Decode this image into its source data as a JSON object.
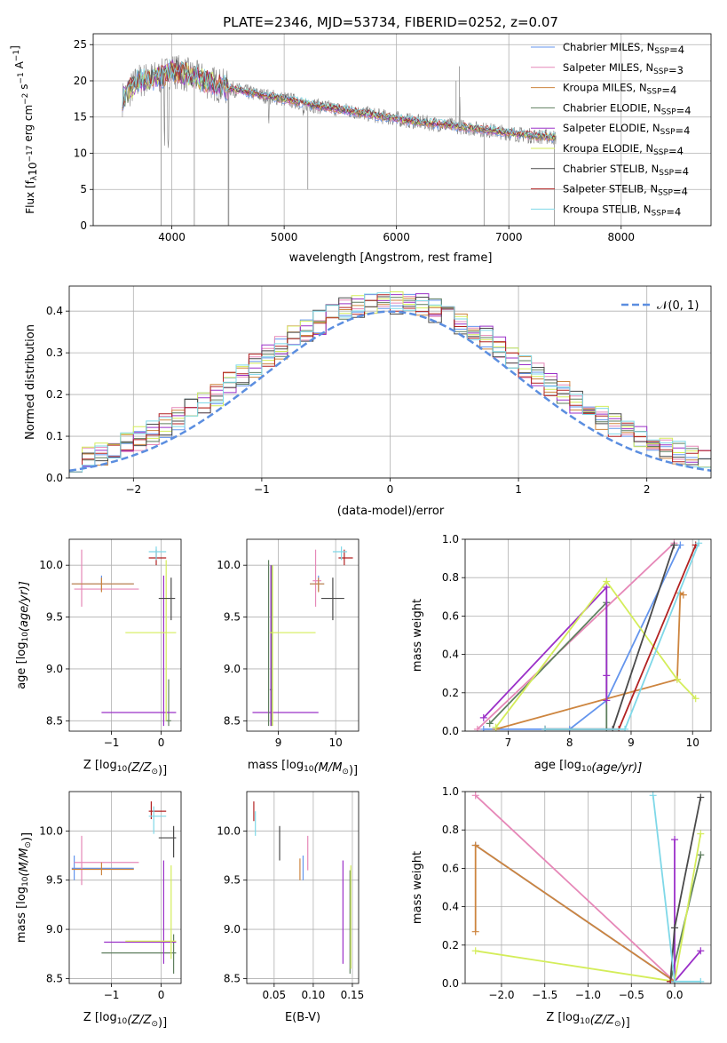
{
  "title": "PLATE=2346, MJD=53734, FIBERID=0252, z=0.07",
  "colors": [
    "#5b7ee0",
    "#e07fb0",
    "#b8860b",
    "#555555",
    "#8a2be2",
    "#d4ed5a",
    "#333333",
    "#b22222",
    "#7fd8e8"
  ],
  "model_colors": {
    "chabrier_miles": "#6495ed",
    "salpeter_miles": "#e688b8",
    "kroupa_miles": "#cd853f",
    "chabrier_elodie": "#5f7f5f",
    "salpeter_elodie": "#9b30c8",
    "kroupa_elodie": "#d4ed5a",
    "chabrier_stelib": "#4a4a4a",
    "salpeter_stelib": "#b22222",
    "kroupa_stelib": "#7fd8e8"
  },
  "chart_data": [
    {
      "id": "spectrum",
      "type": "line",
      "title": "PLATE=2346, MJD=53734, FIBERID=0252, z=0.07",
      "xlabel": "wavelength [Angstrom, rest frame]",
      "ylabel_main": "Flux [f",
      "ylabel_sub": "λ",
      "ylabel_rest": "10",
      "ylabel_exp": "−17",
      "ylabel_tail": " erg cm",
      "ylabel_exp2": "−2",
      "ylabel_tail2": " s",
      "ylabel_exp3": "−1",
      "ylabel_tail3": " A",
      "ylabel_exp4": "−1",
      "ylabel_end": "]",
      "xlim": [
        3300,
        8800
      ],
      "ylim": [
        0,
        26.5
      ],
      "xticks": [
        "4000",
        "5000",
        "6000",
        "7000",
        "8000"
      ],
      "xtick_values": [
        4000,
        5000,
        6000,
        7000,
        8000
      ],
      "yticks": [
        "0",
        "5",
        "10",
        "15",
        "20",
        "25"
      ],
      "ytick_values": [
        0,
        5,
        10,
        15,
        20,
        25
      ],
      "continuum": {
        "x": [
          3560,
          3700,
          3900,
          4000,
          4200,
          4500,
          4800,
          5000,
          5300,
          5600,
          5900,
          6200,
          6500,
          6800,
          7000,
          7200,
          7400
        ],
        "y": [
          17.5,
          20.0,
          20.5,
          21.5,
          20.5,
          19.0,
          18.0,
          17.5,
          16.5,
          15.8,
          15.0,
          14.3,
          13.8,
          13.2,
          12.8,
          12.4,
          12.2
        ]
      },
      "legend": [
        {
          "name": "Chabrier MILES, N",
          "sub": "SSP",
          "tail": "=4"
        },
        {
          "name": "Salpeter MILES, N",
          "sub": "SSP",
          "tail": "=3"
        },
        {
          "name": "Kroupa MILES, N",
          "sub": "SSP",
          "tail": "=4"
        },
        {
          "name": "Chabrier ELODIE, N",
          "sub": "SSP",
          "tail": "=4"
        },
        {
          "name": "Salpeter ELODIE, N",
          "sub": "SSP",
          "tail": "=4"
        },
        {
          "name": "Kroupa ELODIE, N",
          "sub": "SSP",
          "tail": "=4"
        },
        {
          "name": "Chabrier STELIB, N",
          "sub": "SSP",
          "tail": "=4"
        },
        {
          "name": "Salpeter STELIB, N",
          "sub": "SSP",
          "tail": "=4"
        },
        {
          "name": "Kroupa STELIB, N",
          "sub": "SSP",
          "tail": "=4"
        }
      ]
    },
    {
      "id": "residuals",
      "type": "bar",
      "xlabel": "(data-model)/error",
      "ylabel": "Normed distribution",
      "xlim": [
        -2.5,
        2.5
      ],
      "ylim": [
        0,
        0.46
      ],
      "xticks": [
        "−2",
        "−1",
        "0",
        "1",
        "2"
      ],
      "xtick_values": [
        -2,
        -1,
        0,
        1,
        2
      ],
      "yticks": [
        "0.0",
        "0.1",
        "0.2",
        "0.3",
        "0.4"
      ],
      "ytick_values": [
        0,
        0.1,
        0.2,
        0.3,
        0.4
      ],
      "bin_width": 0.1,
      "legend_label": "𝒩(0, 1)",
      "gaussian": {
        "mu": 0,
        "sigma": 1
      }
    },
    {
      "id": "age_vs_Z",
      "type": "scatter",
      "xlabel": "Z [log",
      "xlabel_sub": "10",
      "xlabel_rest": "(Z/Z",
      "xlabel_sun": "⊙",
      "xlabel_end": ")]",
      "ylabel": "age  [log",
      "ylabel_sub": "10",
      "ylabel_rest": "(age/yr)]",
      "xlim": [
        -1.85,
        0.4
      ],
      "ylim": [
        8.4,
        10.25
      ],
      "xticks": [
        "−1",
        "0"
      ],
      "xtick_values": [
        -1,
        0
      ],
      "yticks": [
        "8.5",
        "9.0",
        "9.5",
        "10.0"
      ],
      "ytick_values": [
        8.5,
        9.0,
        9.5,
        10.0
      ],
      "errorbars": [
        {
          "c": "chabrier_miles",
          "x": -1.2,
          "xl": -1.8,
          "xh": -0.55,
          "y": 9.82,
          "yl": 9.75,
          "yh": 9.9
        },
        {
          "c": "salpeter_miles",
          "x": -1.6,
          "xl": -1.75,
          "xh": -0.45,
          "y": 9.77,
          "yl": 9.6,
          "yh": 10.15
        },
        {
          "c": "kroupa_miles",
          "x": -1.2,
          "xl": -1.8,
          "xh": -0.55,
          "y": 9.82,
          "yl": 9.74,
          "yh": 9.88
        },
        {
          "c": "chabrier_elodie",
          "x": 0.15,
          "xl": 0.1,
          "xh": 0.2,
          "y": 8.5,
          "yl": 8.45,
          "yh": 8.9
        },
        {
          "c": "salpeter_elodie",
          "x": 0.05,
          "xl": -1.2,
          "xh": 0.3,
          "y": 8.58,
          "yl": 8.45,
          "yh": 9.9
        },
        {
          "c": "kroupa_elodie",
          "x": 0.1,
          "xl": -0.72,
          "xh": 0.3,
          "y": 9.35,
          "yl": 8.5,
          "yh": 10.05
        },
        {
          "c": "chabrier_stelib",
          "x": 0.2,
          "xl": -0.05,
          "xh": 0.28,
          "y": 9.68,
          "yl": 9.47,
          "yh": 9.88
        },
        {
          "c": "salpeter_stelib",
          "x": -0.1,
          "xl": -0.25,
          "xh": 0.1,
          "y": 10.07,
          "yl": 10.0,
          "yh": 10.15
        },
        {
          "c": "kroupa_stelib",
          "x": -0.1,
          "xl": -0.25,
          "xh": 0.1,
          "y": 10.13,
          "yl": 10.05,
          "yh": 10.18
        }
      ]
    },
    {
      "id": "age_vs_mass",
      "type": "scatter",
      "xlabel": "mass [log",
      "xlabel_sub": "10",
      "xlabel_rest": "(M/M",
      "xlabel_sun": "⊙",
      "xlabel_end": ")]",
      "xlim": [
        8.45,
        10.4
      ],
      "ylim": [
        8.4,
        10.25
      ],
      "xticks": [
        "9",
        "10"
      ],
      "xtick_values": [
        9,
        10
      ],
      "yticks": [
        "8.5",
        "9.0",
        "9.5",
        "10.0"
      ],
      "ytick_values": [
        8.5,
        9.0,
        9.5,
        10.0
      ],
      "errorbars": [
        {
          "c": "chabrier_miles",
          "x": 9.7,
          "xl": 9.55,
          "xh": 9.8,
          "y": 9.82,
          "yl": 9.75,
          "yh": 9.9
        },
        {
          "c": "salpeter_miles",
          "x": 9.65,
          "xl": 9.6,
          "xh": 9.75,
          "y": 9.85,
          "yl": 9.6,
          "yh": 10.15
        },
        {
          "c": "kroupa_miles",
          "x": 9.7,
          "xl": 9.55,
          "xh": 9.8,
          "y": 9.82,
          "yl": 9.74,
          "yh": 9.88
        },
        {
          "c": "chabrier_elodie",
          "x": 8.88,
          "xl": 8.85,
          "xh": 8.9,
          "y": 8.8,
          "yl": 8.45,
          "yh": 10.0
        },
        {
          "c": "salpeter_elodie",
          "x": 8.87,
          "xl": 8.55,
          "xh": 9.7,
          "y": 8.58,
          "yl": 8.45,
          "yh": 10.0
        },
        {
          "c": "kroupa_elodie",
          "x": 8.9,
          "xl": 8.85,
          "xh": 9.65,
          "y": 9.35,
          "yl": 8.45,
          "yh": 10.0
        },
        {
          "c": "chabrier_stelib",
          "x": 9.95,
          "xl": 9.75,
          "xh": 10.15,
          "y": 9.68,
          "yl": 9.47,
          "yh": 9.88
        },
        {
          "c": "salpeter_stelib",
          "x": 10.15,
          "xl": 10.05,
          "xh": 10.3,
          "y": 10.07,
          "yl": 10.0,
          "yh": 10.15
        },
        {
          "c": "kroupa_stelib",
          "x": 10.1,
          "xl": 9.95,
          "xh": 10.2,
          "y": 10.13,
          "yl": 10.05,
          "yh": 10.18
        },
        {
          "c": "chabrier_elodie",
          "x": 8.83,
          "xl": 8.83,
          "xh": 8.83,
          "y": 9.2,
          "yl": 8.45,
          "yh": 10.05
        }
      ]
    },
    {
      "id": "weight_vs_age",
      "type": "line",
      "xlabel": "age  [log",
      "xlabel_sub": "10",
      "xlabel_rest": "(age/yr)]",
      "ylabel": "mass weight",
      "xlim": [
        6.3,
        10.3
      ],
      "ylim": [
        0,
        1.0
      ],
      "xticks": [
        "7",
        "8",
        "9",
        "10"
      ],
      "xtick_values": [
        7,
        8,
        9,
        10
      ],
      "yticks": [
        "0.0",
        "0.2",
        "0.4",
        "0.6",
        "0.8",
        "1.0"
      ],
      "ytick_values": [
        0,
        0.2,
        0.4,
        0.6,
        0.8,
        1.0
      ],
      "series": [
        {
          "c": "chabrier_miles",
          "x": [
            6.6,
            8.0,
            8.6,
            9.8
          ],
          "y": [
            0.01,
            0.01,
            0.16,
            0.97
          ]
        },
        {
          "c": "salpeter_miles",
          "x": [
            6.5,
            9.7
          ],
          "y": [
            0.01,
            0.98
          ]
        },
        {
          "c": "kroupa_miles",
          "x": [
            6.8,
            9.75,
            9.8,
            9.85
          ],
          "y": [
            0.01,
            0.27,
            0.72,
            0.71
          ]
        },
        {
          "c": "chabrier_elodie",
          "x": [
            6.7,
            8.6,
            8.6
          ],
          "y": [
            0.04,
            0.67,
            0.01
          ]
        },
        {
          "c": "salpeter_elodie",
          "x": [
            6.6,
            8.6,
            8.6,
            8.6
          ],
          "y": [
            0.07,
            0.75,
            0.29,
            0.16
          ]
        },
        {
          "c": "kroupa_elodie",
          "x": [
            6.8,
            8.6,
            9.75,
            10.05
          ],
          "y": [
            0.02,
            0.78,
            0.27,
            0.17
          ]
        },
        {
          "c": "chabrier_stelib",
          "x": [
            7.6,
            8.7,
            9.7
          ],
          "y": [
            0.01,
            0.01,
            0.97
          ]
        },
        {
          "c": "salpeter_stelib",
          "x": [
            7.6,
            8.8,
            10.05
          ],
          "y": [
            0.01,
            0.01,
            0.97
          ]
        },
        {
          "c": "kroupa_stelib",
          "x": [
            7.6,
            8.9,
            10.1
          ],
          "y": [
            0.01,
            0.01,
            0.98
          ]
        }
      ]
    },
    {
      "id": "mass_vs_Z",
      "type": "scatter",
      "xlabel": "Z [log",
      "xlabel_sub": "10",
      "xlabel_rest": "(Z/Z",
      "xlabel_sun": "⊙",
      "xlabel_end": ")]",
      "ylabel": "mass [log",
      "ylabel_sub": "10",
      "ylabel_rest": "(M/M",
      "ylabel_sun": "⊙",
      "ylabel_end": ")]",
      "xlim": [
        -1.85,
        0.4
      ],
      "ylim": [
        8.45,
        10.4
      ],
      "xticks": [
        "−1",
        "0"
      ],
      "xtick_values": [
        -1,
        0
      ],
      "yticks": [
        "8.5",
        "9.0",
        "9.5",
        "10.0"
      ],
      "ytick_values": [
        8.5,
        9.0,
        9.5,
        10.0
      ],
      "errorbars": [
        {
          "c": "chabrier_miles",
          "x": -1.75,
          "xl": -1.8,
          "xh": -0.55,
          "y": 9.62,
          "yl": 9.5,
          "yh": 9.75
        },
        {
          "c": "salpeter_miles",
          "x": -1.6,
          "xl": -1.75,
          "xh": -0.45,
          "y": 9.68,
          "yl": 9.45,
          "yh": 9.95
        },
        {
          "c": "kroupa_miles",
          "x": -1.2,
          "xl": -1.8,
          "xh": -0.55,
          "y": 9.61,
          "yl": 9.55,
          "yh": 9.68
        },
        {
          "c": "chabrier_elodie",
          "x": 0.25,
          "xl": -1.2,
          "xh": 0.3,
          "y": 8.76,
          "yl": 8.55,
          "yh": 8.95
        },
        {
          "c": "salpeter_elodie",
          "x": 0.05,
          "xl": -1.15,
          "xh": 0.3,
          "y": 8.87,
          "yl": 8.65,
          "yh": 9.7
        },
        {
          "c": "kroupa_elodie",
          "x": 0.2,
          "xl": -0.72,
          "xh": 0.3,
          "y": 8.88,
          "yl": 8.7,
          "yh": 9.65
        },
        {
          "c": "chabrier_stelib",
          "x": 0.25,
          "xl": -0.05,
          "xh": 0.3,
          "y": 9.93,
          "yl": 9.73,
          "yh": 10.05
        },
        {
          "c": "salpeter_stelib",
          "x": -0.2,
          "xl": -0.25,
          "xh": 0.1,
          "y": 10.2,
          "yl": 10.12,
          "yh": 10.3
        },
        {
          "c": "kroupa_stelib",
          "x": -0.15,
          "xl": -0.25,
          "xh": 0.1,
          "y": 10.15,
          "yl": 9.97,
          "yh": 10.25
        }
      ]
    },
    {
      "id": "mass_vs_ebv",
      "type": "scatter",
      "xlabel": "E(B-V)",
      "xlim": [
        0.015,
        0.158
      ],
      "ylim": [
        8.45,
        10.4
      ],
      "xticks": [
        "0.05",
        "0.10",
        "0.15"
      ],
      "xtick_values": [
        0.05,
        0.1,
        0.15
      ],
      "yticks": [
        "8.5",
        "9.0",
        "9.5",
        "10.0"
      ],
      "ytick_values": [
        8.5,
        9.0,
        9.5,
        10.0
      ],
      "errorbars": [
        {
          "c": "chabrier_miles",
          "x": 0.087,
          "y": 9.62,
          "yl": 9.5,
          "yh": 9.75
        },
        {
          "c": "salpeter_miles",
          "x": 0.093,
          "y": 9.78,
          "yl": 9.6,
          "yh": 9.95
        },
        {
          "c": "kroupa_miles",
          "x": 0.083,
          "y": 9.61,
          "yl": 9.5,
          "yh": 9.72
        },
        {
          "c": "chabrier_elodie",
          "x": 0.147,
          "y": 8.76,
          "yl": 8.55,
          "yh": 9.6
        },
        {
          "c": "salpeter_elodie",
          "x": 0.138,
          "y": 9.2,
          "yl": 8.65,
          "yh": 9.7
        },
        {
          "c": "kroupa_elodie",
          "x": 0.148,
          "y": 9.1,
          "yl": 8.6,
          "yh": 9.65
        },
        {
          "c": "chabrier_stelib",
          "x": 0.057,
          "y": 9.93,
          "yl": 9.7,
          "yh": 10.05
        },
        {
          "c": "salpeter_stelib",
          "x": 0.024,
          "y": 10.2,
          "yl": 10.1,
          "yh": 10.3
        },
        {
          "c": "kroupa_stelib",
          "x": 0.026,
          "y": 10.12,
          "yl": 9.95,
          "yh": 10.2
        }
      ]
    },
    {
      "id": "weight_vs_Z",
      "type": "line",
      "xlabel": "Z [log",
      "xlabel_sub": "10",
      "xlabel_rest": "(Z/Z",
      "xlabel_sun": "⊙",
      "xlabel_end": ")]",
      "ylabel": "mass weight",
      "xlim": [
        -2.42,
        0.42
      ],
      "ylim": [
        0,
        1.0
      ],
      "xticks": [
        "−2.0",
        "−1.5",
        "−1.0",
        "−0.5",
        "0.0"
      ],
      "xtick_values": [
        -2,
        -1.5,
        -1,
        -0.5,
        0
      ],
      "yticks": [
        "0.0",
        "0.2",
        "0.4",
        "0.6",
        "0.8",
        "1.0"
      ],
      "ytick_values": [
        0,
        0.2,
        0.4,
        0.6,
        0.8,
        1.0
      ],
      "series": [
        {
          "c": "chabrier_miles",
          "x": [
            -2.3,
            0.0
          ],
          "y": [
            0.72,
            0.01
          ]
        },
        {
          "c": "salpeter_miles",
          "x": [
            -2.3,
            0.0
          ],
          "y": [
            0.98,
            0.01
          ]
        },
        {
          "c": "kroupa_miles",
          "x": [
            -2.3,
            -2.3,
            0.0
          ],
          "y": [
            0.27,
            0.72,
            0.01
          ]
        },
        {
          "c": "chabrier_elodie",
          "x": [
            -0.05,
            0.3
          ],
          "y": [
            0.01,
            0.67
          ]
        },
        {
          "c": "salpeter_elodie",
          "x": [
            0.0,
            0.0,
            0.3
          ],
          "y": [
            0.75,
            0.01,
            0.17
          ]
        },
        {
          "c": "kroupa_elodie",
          "x": [
            -2.3,
            0.0,
            0.3
          ],
          "y": [
            0.17,
            0.01,
            0.78
          ]
        },
        {
          "c": "chabrier_stelib",
          "x": [
            -0.05,
            0.0,
            0.3
          ],
          "y": [
            0.01,
            0.29,
            0.97
          ]
        },
        {
          "c": "salpeter_stelib",
          "x": [
            -0.05,
            0.0
          ],
          "y": [
            0.01,
            0.01
          ]
        },
        {
          "c": "kroupa_stelib",
          "x": [
            -0.25,
            0.0,
            0.3
          ],
          "y": [
            0.98,
            0.01,
            0.01
          ]
        }
      ]
    }
  ]
}
